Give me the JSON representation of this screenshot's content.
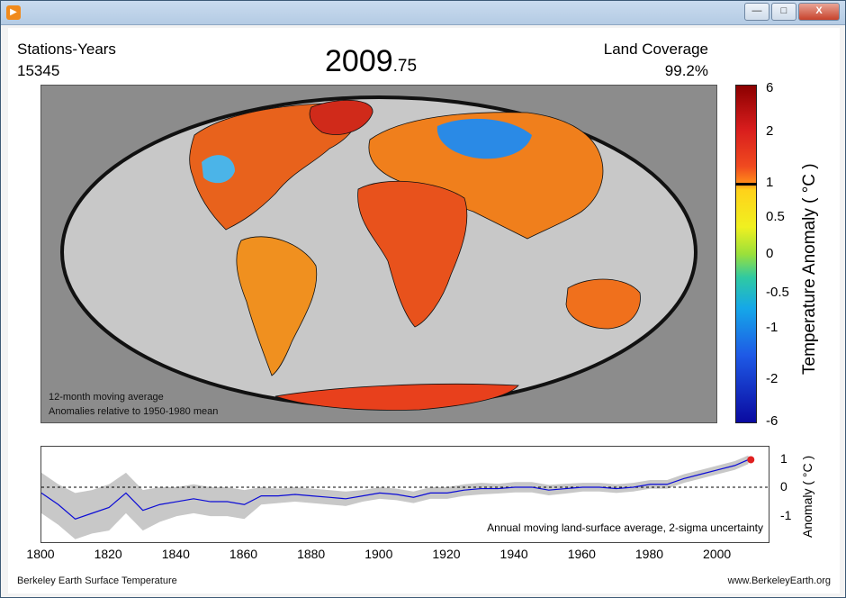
{
  "window": {
    "icon": "play-icon",
    "controls": {
      "minimize": "—",
      "maximize": "□",
      "close": "X"
    }
  },
  "header": {
    "stations_label": "Stations-Years",
    "stations_value": "15345",
    "year_main": "2009",
    "year_fraction": ".75",
    "coverage_label": "Land Coverage",
    "coverage_value": "99.2%"
  },
  "map": {
    "note_line1": "12-month moving average",
    "note_line2": "Anomalies relative to 1950-1980 mean",
    "colorbar_title": "Temperature Anomaly ( °C )",
    "colorbar_ticks": [
      "6",
      "2",
      "1",
      "0.5",
      "0",
      "-0.5",
      "-1",
      "-2",
      "-6"
    ]
  },
  "chart_data": {
    "type": "line",
    "title": "Annual moving land-surface average, 2-sigma uncertainty",
    "ylabel": "Anomaly ( °C )",
    "xlabel": "",
    "x_ticks": [
      "1800",
      "1820",
      "1840",
      "1860",
      "1880",
      "1900",
      "1920",
      "1940",
      "1960",
      "1980",
      "2000"
    ],
    "y_ticks": [
      "1",
      "0",
      "-1"
    ],
    "xlim": [
      1800,
      2015
    ],
    "ylim": [
      -1.9,
      1.4
    ],
    "zero_line": true,
    "series": [
      {
        "name": "anomaly",
        "x": [
          1800,
          1805,
          1810,
          1815,
          1820,
          1825,
          1830,
          1835,
          1840,
          1845,
          1850,
          1855,
          1860,
          1865,
          1870,
          1875,
          1880,
          1885,
          1890,
          1895,
          1900,
          1905,
          1910,
          1915,
          1920,
          1925,
          1930,
          1935,
          1940,
          1945,
          1950,
          1955,
          1960,
          1965,
          1970,
          1975,
          1980,
          1985,
          1990,
          1995,
          2000,
          2005,
          2009
        ],
        "y": [
          -0.2,
          -0.6,
          -1.1,
          -0.9,
          -0.7,
          -0.2,
          -0.8,
          -0.6,
          -0.5,
          -0.4,
          -0.5,
          -0.5,
          -0.6,
          -0.3,
          -0.3,
          -0.25,
          -0.3,
          -0.35,
          -0.4,
          -0.3,
          -0.2,
          -0.25,
          -0.35,
          -0.2,
          -0.2,
          -0.1,
          -0.05,
          -0.05,
          0.0,
          0.0,
          -0.1,
          -0.05,
          0.0,
          0.0,
          -0.05,
          0.0,
          0.1,
          0.1,
          0.3,
          0.45,
          0.6,
          0.75,
          0.95
        ],
        "upper": [
          0.5,
          0.1,
          -0.2,
          -0.1,
          0.1,
          0.5,
          -0.1,
          0.0,
          0.0,
          0.1,
          0.0,
          0.0,
          -0.1,
          0.0,
          -0.05,
          0.0,
          -0.05,
          -0.1,
          -0.15,
          -0.1,
          0.0,
          -0.05,
          -0.15,
          0.0,
          0.0,
          0.1,
          0.15,
          0.12,
          0.18,
          0.18,
          0.08,
          0.12,
          0.15,
          0.15,
          0.1,
          0.15,
          0.25,
          0.25,
          0.45,
          0.6,
          0.75,
          0.9,
          1.1
        ],
        "lower": [
          -0.9,
          -1.3,
          -1.8,
          -1.6,
          -1.5,
          -0.9,
          -1.5,
          -1.2,
          -1.0,
          -0.9,
          -1.0,
          -1.0,
          -1.1,
          -0.6,
          -0.55,
          -0.5,
          -0.55,
          -0.6,
          -0.65,
          -0.5,
          -0.4,
          -0.45,
          -0.55,
          -0.4,
          -0.4,
          -0.3,
          -0.25,
          -0.22,
          -0.18,
          -0.18,
          -0.28,
          -0.22,
          -0.15,
          -0.15,
          -0.2,
          -0.15,
          -0.05,
          -0.05,
          0.15,
          0.3,
          0.45,
          0.6,
          0.8
        ]
      }
    ],
    "current_point": {
      "x": 2009.75,
      "y": 0.95
    },
    "colors": {
      "line": "#0b0bd6",
      "band": "#c8c8c8",
      "point": "#e02020"
    }
  },
  "footer": {
    "left": "Berkeley Earth Surface Temperature",
    "right": "www.BerkeleyEarth.org"
  }
}
